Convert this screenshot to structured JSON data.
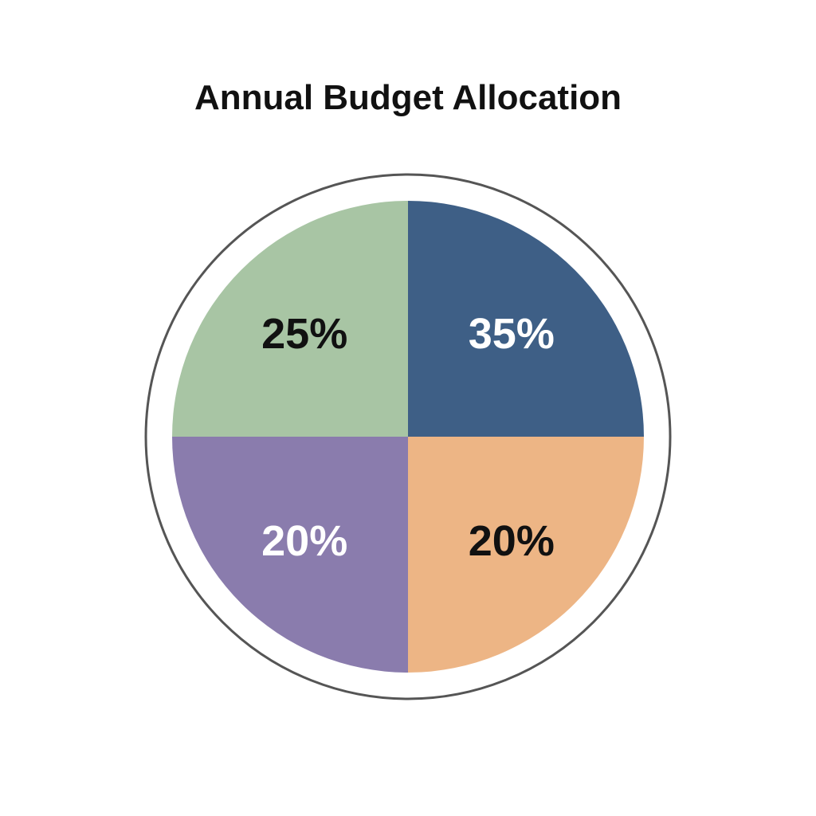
{
  "chart_data": {
    "type": "pie",
    "title": "Annual Budget Allocation",
    "slices": [
      {
        "value": 35,
        "label": "35%",
        "color": "#3e5f86",
        "label_color": "#ffffff"
      },
      {
        "value": 20,
        "label": "20%",
        "color": "#edb585",
        "label_color": "#111111"
      },
      {
        "value": 20,
        "label": "20%",
        "color": "#8a7cad",
        "label_color": "#ffffff"
      },
      {
        "value": 25,
        "label": "25%",
        "color": "#a8c5a4",
        "label_color": "#111111"
      }
    ],
    "legend": "none",
    "grid": false
  }
}
